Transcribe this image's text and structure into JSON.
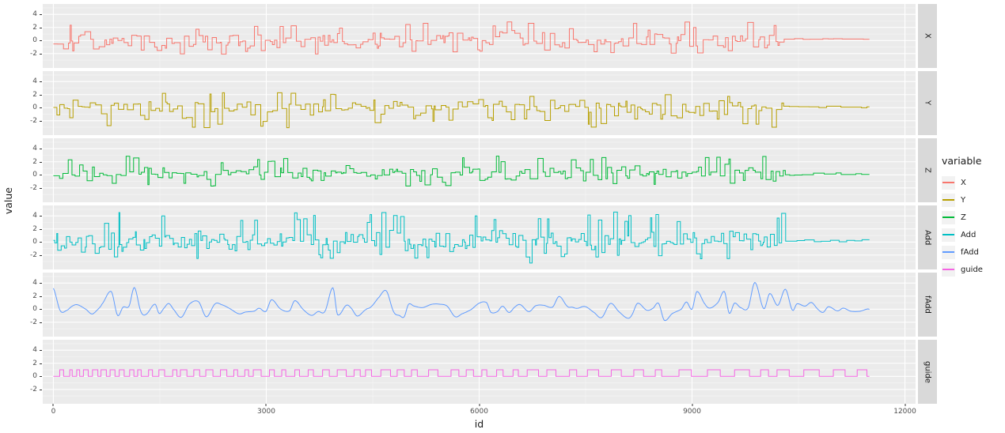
{
  "figure": {
    "xlabel": "id",
    "ylabel": "value",
    "legend_title": "variable"
  },
  "chart_data": {
    "type": "line",
    "faceted": true,
    "facet_variable": "variable",
    "facet_order": [
      "X",
      "Y",
      "Z",
      "Add",
      "fAdd",
      "guide"
    ],
    "x_field": "id",
    "xlabel": "id",
    "ylabel": "value",
    "x_ticks": [
      0,
      3000,
      6000,
      9000,
      12000
    ],
    "x_minor_ticks": [
      1500,
      4500,
      7500,
      10500
    ],
    "x_domain": [
      -150,
      12150
    ],
    "x_data_start": 0,
    "x_data_end": 11500,
    "y_ticks": [
      4,
      2,
      0,
      -2
    ],
    "y_minor_ticks": [
      5,
      3,
      1,
      -1,
      -3
    ],
    "y_domain": [
      -4.2,
      5.6
    ],
    "legend_position": "right",
    "grid": true,
    "style": {
      "panel_background": "#EBEBEB",
      "strip_background": "#D9D9D9",
      "major_grid_color": "#FFFFFF",
      "minor_grid_color": "rgba(255,255,255,0.55)",
      "tick_color": "#333333",
      "tick_label_color": "#4d4d4d",
      "legend_key_background": "#F2F2F2"
    },
    "series": [
      {
        "name": "X",
        "color": "#F8766D",
        "kind": "step",
        "seed": 101,
        "sd": 0.75,
        "step": [
          15,
          85
        ],
        "spike_rate": 0.07,
        "spike": [
          1.8,
          3.1
        ],
        "dip_rate": 0.06,
        "dip": [
          1.4,
          2.2
        ],
        "flatten_after": 10250,
        "flat_level": 0.25,
        "end": 11500,
        "description": "noisy step series, mean ~0, range -2..3, flattens to ~0.2 after id 10250"
      },
      {
        "name": "Y",
        "color": "#B79F00",
        "kind": "step",
        "seed": 202,
        "sd": 0.72,
        "step": [
          15,
          85
        ],
        "spike_rate": 0.06,
        "spike": [
          1.5,
          2.3
        ],
        "dip_rate": 0.09,
        "dip": [
          1.5,
          3.1
        ],
        "flatten_after": 10350,
        "flat_level": 0.1,
        "end": 11500,
        "description": "noisy step series with frequent deep dips to -3, flattens after id 10350"
      },
      {
        "name": "Z",
        "color": "#00BA38",
        "kind": "step",
        "seed": 303,
        "sd": 0.6,
        "step": [
          15,
          80
        ],
        "spike_rate": 0.07,
        "spike": [
          1.6,
          2.9
        ],
        "dip_rate": 0.04,
        "dip": [
          1.2,
          1.8
        ],
        "flatten_after": 10300,
        "flat_level": 0.1,
        "bias": 0.1,
        "end": 11500,
        "description": "noisy step series mostly between -1 and 2, peaks ~3, flattens after id 10300"
      },
      {
        "name": "Add",
        "color": "#00BFC4",
        "kind": "step",
        "seed": 404,
        "sd": 0.85,
        "step": [
          12,
          60
        ],
        "spike_rate": 0.09,
        "spike": [
          2.8,
          4.6
        ],
        "dip_rate": 0.06,
        "dip": [
          1.5,
          2.6
        ],
        "flatten_after": 10300,
        "flat_level": 0.2,
        "end": 11500,
        "description": "spiky step series with frequent tall spikes to ~4.5 and dips to -2.5"
      },
      {
        "name": "fAdd",
        "color": "#619CFF",
        "kind": "smooth",
        "seed": 505,
        "sd": 0.7,
        "ctrl_step": 95,
        "peak_rate": 0.1,
        "peak": [
          1.8,
          3.4
        ],
        "big_after": 8800,
        "big_mult": 1.3,
        "end": 11500,
        "description": "smooth wavy series around 0, +/-1.5 typical, largest peaks ~4 near id 9500-10400"
      },
      {
        "name": "guide",
        "color": "#F564E3",
        "kind": "square",
        "seed": 606,
        "low": 0,
        "high": 1,
        "high_w": [
          30,
          40
        ],
        "low_w": [
          35,
          55
        ],
        "width_growth": 2.5,
        "end": 11500,
        "description": "square wave alternating between 0 and 1, pulse width increases toward the right"
      }
    ]
  }
}
